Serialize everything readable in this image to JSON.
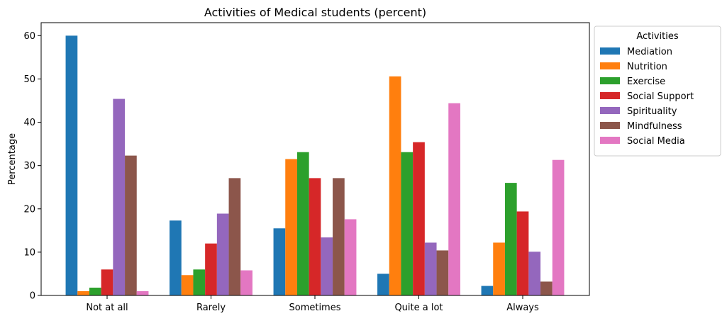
{
  "chart_data": {
    "type": "bar",
    "title": "Activities of Medical students (percent)",
    "xlabel": "",
    "ylabel": "Percentage",
    "ylim": [
      0,
      63
    ],
    "yticks": [
      0,
      10,
      20,
      30,
      40,
      50,
      60
    ],
    "ytick_labels": [
      "0",
      "10",
      "20",
      "30",
      "40",
      "50",
      "60"
    ],
    "categories": [
      "Not at all",
      "Rarely",
      "Sometimes",
      "Quite a lot",
      "Always"
    ],
    "legend_title": "Activities",
    "legend_position": "outside upper right",
    "grid": false,
    "series": [
      {
        "name": "Mediation",
        "color": "#1f77b4",
        "values": [
          60,
          17.3,
          15.5,
          5.0,
          2.2
        ]
      },
      {
        "name": "Nutrition",
        "color": "#ff7f0e",
        "values": [
          1.0,
          4.7,
          31.5,
          50.6,
          12.2
        ]
      },
      {
        "name": "Exercise",
        "color": "#2ca02c",
        "values": [
          1.8,
          6.0,
          33.1,
          33.1,
          26.0
        ]
      },
      {
        "name": "Social Support",
        "color": "#d62728",
        "values": [
          6.0,
          12.0,
          27.1,
          35.4,
          19.4
        ]
      },
      {
        "name": "Spirituality",
        "color": "#9467bd",
        "values": [
          45.4,
          18.9,
          13.4,
          12.2,
          10.1
        ]
      },
      {
        "name": "Mindfulness",
        "color": "#8c564b",
        "values": [
          32.3,
          27.1,
          27.1,
          10.4,
          3.2
        ]
      },
      {
        "name": "Social Media",
        "color": "#e377c2",
        "values": [
          1.0,
          5.8,
          17.6,
          44.4,
          31.3
        ]
      }
    ]
  }
}
